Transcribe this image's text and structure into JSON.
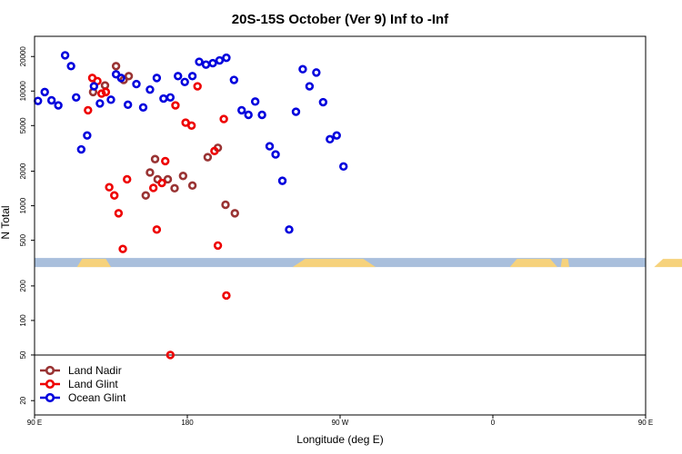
{
  "chart_data": {
    "type": "scatter",
    "title": "20S-15S October (Ver 9)   Inf to -Inf",
    "xlabel": "Longitude (deg E)",
    "ylabel": "N Total",
    "y_scale": "log",
    "xlim": [
      90,
      450
    ],
    "ylim": [
      15,
      30000
    ],
    "grid": false,
    "legend_position": "bottom-left",
    "x_ticks": [
      {
        "value": 90,
        "label": "90 E"
      },
      {
        "value": 180,
        "label": "180"
      },
      {
        "value": 270,
        "label": "90 W"
      },
      {
        "value": 360,
        "label": "0"
      },
      {
        "value": 450,
        "label": "90 E"
      },
      {
        "value": 540,
        "label": "180"
      }
    ],
    "y_ticks": [
      {
        "value": 20,
        "label": "20"
      },
      {
        "value": 50,
        "label": "50"
      },
      {
        "value": 100,
        "label": "100"
      },
      {
        "value": 200,
        "label": "200"
      },
      {
        "value": 500,
        "label": "500"
      },
      {
        "value": 1000,
        "label": "1000"
      },
      {
        "value": 2000,
        "label": "2000"
      },
      {
        "value": 5000,
        "label": "5000"
      },
      {
        "value": 10000,
        "label": "10000"
      },
      {
        "value": 20000,
        "label": "20000"
      }
    ],
    "reference_line_y": 50,
    "land_mask": {
      "y_value": 320,
      "ocean_color": "#a9bfdc",
      "land_color": "#f6d27c",
      "land_segments": [
        [
          115,
          135
        ],
        [
          242,
          291
        ],
        [
          370,
          398
        ],
        [
          400,
          405
        ],
        [
          455,
          490
        ]
      ]
    },
    "series": [
      {
        "name": "Land Nadir",
        "color": "#993333",
        "x": [
          124.5,
          131.5,
          138,
          142.5,
          145.5,
          155.5,
          158,
          161,
          162.5,
          168.5,
          172.5,
          177.5,
          183,
          192,
          198,
          202.5,
          208
        ],
        "y": [
          9800,
          11200,
          16500,
          12500,
          13500,
          1230,
          1950,
          2550,
          1700,
          1700,
          1420,
          1820,
          1500,
          2650,
          3200,
          1020,
          860
        ]
      },
      {
        "name": "Land Glint",
        "color": "#ee0000",
        "x": [
          121.5,
          124,
          127,
          129.5,
          132,
          134,
          137,
          139.5,
          142,
          144.5,
          160,
          162,
          165,
          167,
          170,
          173,
          179,
          182.5,
          186,
          196,
          198,
          201.5,
          203
        ],
        "y": [
          6800,
          13000,
          12200,
          9500,
          9800,
          1450,
          1230,
          860,
          420,
          1700,
          1430,
          620,
          1580,
          2450,
          50,
          7500,
          5300,
          5000,
          11000,
          3000,
          450,
          5700,
          165
        ]
      },
      {
        "name": "Ocean Glint",
        "color": "#0000dd",
        "x": [
          92,
          96,
          100,
          104,
          108,
          111.5,
          114.5,
          117.5,
          121,
          125,
          128.5,
          135,
          138,
          141,
          145,
          150,
          154,
          158,
          162,
          166,
          170,
          174.5,
          178.5,
          183,
          187,
          191,
          195,
          199,
          203,
          207.5,
          212,
          216,
          220,
          224,
          228.5,
          232,
          236,
          240,
          244,
          248,
          252,
          256,
          260,
          264,
          268,
          272
        ],
        "y": [
          8200,
          9800,
          8300,
          7500,
          20500,
          16500,
          8800,
          3100,
          4100,
          11000,
          7800,
          8400,
          14000,
          13000,
          7600,
          11500,
          7200,
          10300,
          13000,
          8600,
          8800,
          13500,
          12000,
          13500,
          18000,
          17000,
          17500,
          18500,
          19500,
          12500,
          6800,
          6200,
          8100,
          6200,
          3300,
          2800,
          1650,
          620,
          6600,
          15500,
          11000,
          14500,
          8000,
          3800,
          4100,
          2200
        ]
      }
    ]
  }
}
